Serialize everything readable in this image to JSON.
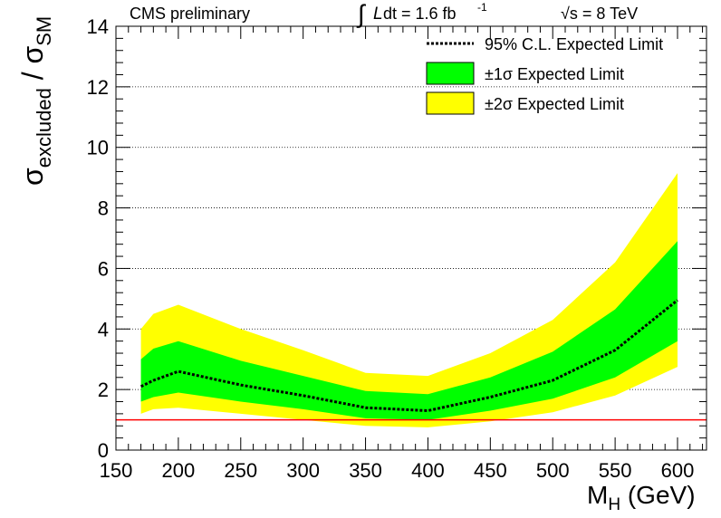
{
  "header": {
    "left": "CMS preliminary",
    "lumi_integral_symbol": "∫",
    "lumi_L": "L",
    "lumi_rest": " dt = 1.6 fb",
    "lumi_exp": "-1",
    "energy": "√s = 8 TeV"
  },
  "legend": {
    "expected": "95% C.L. Expected Limit",
    "one_sigma": "±1σ Expected Limit",
    "two_sigma": "±2σ Expected Limit"
  },
  "axes": {
    "x_label_main": "M",
    "x_label_sub": "H",
    "x_label_unit": " (GeV)",
    "y_label_sigma1": "σ",
    "y_label_sub1": "excluded",
    "y_label_slash": " / ",
    "y_label_sigma2": "σ",
    "y_label_sub2": "SM"
  },
  "colors": {
    "one_sigma_band": "#00ff00",
    "two_sigma_band": "#ffff00",
    "reference_line": "#ff0000",
    "expected_line": "#000000"
  },
  "chart_data": {
    "type": "line",
    "xlim": [
      150,
      620
    ],
    "ylim": [
      0,
      14
    ],
    "x_ticks": [
      150,
      200,
      250,
      300,
      350,
      400,
      450,
      500,
      550,
      600
    ],
    "y_ticks": [
      0,
      2,
      4,
      6,
      8,
      10,
      12,
      14
    ],
    "y_gridlines": [
      2,
      4,
      6,
      8,
      10,
      12
    ],
    "reference_line_y": 1.0,
    "mass": [
      170,
      180,
      200,
      250,
      300,
      350,
      400,
      450,
      500,
      550,
      600
    ],
    "expected": [
      2.1,
      2.3,
      2.6,
      2.15,
      1.8,
      1.4,
      1.3,
      1.75,
      2.3,
      3.3,
      4.95
    ],
    "one_sigma_low": [
      1.6,
      1.75,
      1.9,
      1.6,
      1.35,
      1.05,
      1.0,
      1.3,
      1.7,
      2.4,
      3.6
    ],
    "one_sigma_high": [
      3.0,
      3.35,
      3.6,
      2.95,
      2.45,
      1.95,
      1.85,
      2.4,
      3.25,
      4.65,
      6.9
    ],
    "two_sigma_low": [
      1.2,
      1.35,
      1.4,
      1.2,
      1.0,
      0.8,
      0.75,
      0.95,
      1.25,
      1.8,
      2.75
    ],
    "two_sigma_high": [
      4.0,
      4.5,
      4.8,
      4.0,
      3.3,
      2.55,
      2.45,
      3.2,
      4.3,
      6.2,
      9.15
    ]
  }
}
